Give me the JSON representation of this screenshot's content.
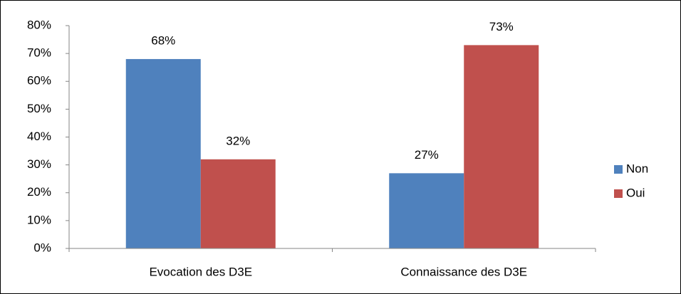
{
  "chart_data": {
    "type": "bar",
    "categories": [
      "Evocation des D3E",
      "Connaissance des D3E"
    ],
    "series": [
      {
        "name": "Non",
        "color": "#4f81bd",
        "values": [
          68,
          27
        ],
        "value_labels": [
          "68%",
          "27%"
        ]
      },
      {
        "name": "Oui",
        "color": "#c0504d",
        "values": [
          32,
          73
        ],
        "value_labels": [
          "32%",
          "73%"
        ]
      }
    ],
    "ylim": [
      0,
      80
    ],
    "yticks": [
      {
        "value": 0,
        "label": "0%"
      },
      {
        "value": 10,
        "label": "10%"
      },
      {
        "value": 20,
        "label": "20%"
      },
      {
        "value": 30,
        "label": "30%"
      },
      {
        "value": 40,
        "label": "40%"
      },
      {
        "value": 50,
        "label": "50%"
      },
      {
        "value": 60,
        "label": "60%"
      },
      {
        "value": 70,
        "label": "70%"
      },
      {
        "value": 80,
        "label": "80%"
      }
    ],
    "grid": false,
    "legend": "right"
  }
}
